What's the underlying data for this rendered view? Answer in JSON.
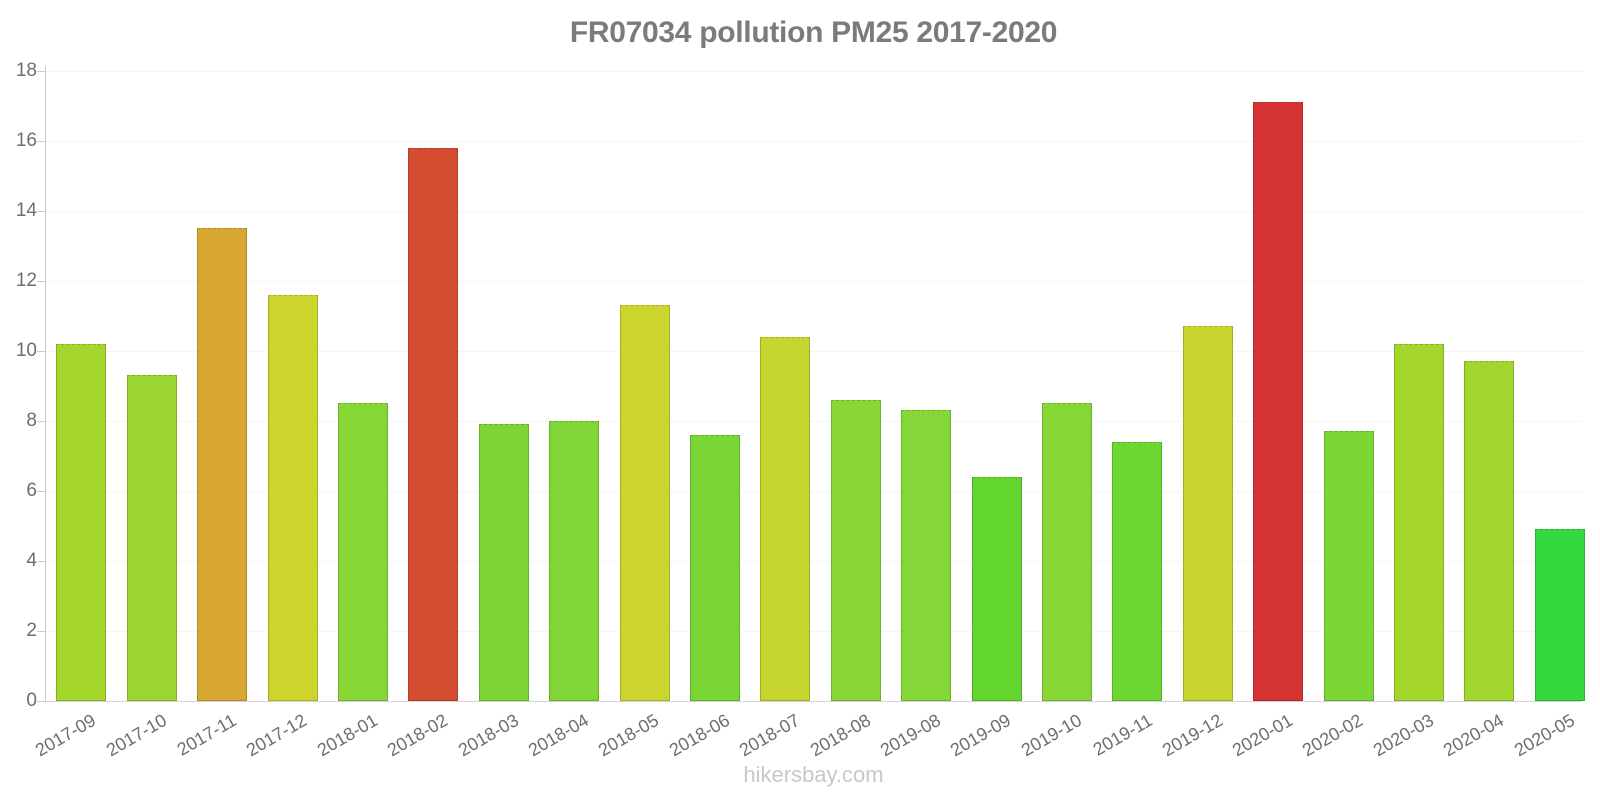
{
  "chart_data": {
    "type": "bar",
    "title": "FR07034 pollution PM25 2017-2020",
    "xlabel": "",
    "ylabel": "",
    "categories": [
      "2017-09",
      "2017-10",
      "2017-11",
      "2017-12",
      "2018-01",
      "2018-02",
      "2018-03",
      "2018-04",
      "2018-05",
      "2018-06",
      "2018-07",
      "2018-08",
      "2019-08",
      "2019-09",
      "2019-10",
      "2019-11",
      "2019-12",
      "2020-01",
      "2020-02",
      "2020-03",
      "2020-04",
      "2020-05"
    ],
    "values": [
      10.2,
      9.3,
      13.5,
      11.6,
      8.5,
      15.8,
      7.9,
      8.0,
      11.3,
      7.6,
      10.4,
      8.6,
      8.3,
      6.4,
      8.5,
      7.4,
      10.7,
      17.1,
      7.7,
      10.2,
      9.7,
      4.9
    ],
    "bar_colors": [
      "#a4d62c",
      "#9bd530",
      "#d9a832",
      "#cdd52c",
      "#86d735",
      "#d54d30",
      "#7ed636",
      "#80d636",
      "#cbd52e",
      "#79d634",
      "#c6d52f",
      "#88d736",
      "#84d736",
      "#62d62e",
      "#86d735",
      "#6cd730",
      "#c8d52e",
      "#d63434",
      "#7cd634",
      "#a4d62c",
      "#a0d62e",
      "#35d83e"
    ],
    "ylim": [
      0,
      18
    ],
    "yticks": [
      0,
      2,
      4,
      6,
      8,
      10,
      12,
      14,
      16,
      18
    ],
    "x_label_rotation_deg": -30,
    "grid": "faint horizontal lines",
    "legend": "none"
  },
  "watermark": "hikersbay.com",
  "colors": {
    "title_text": "#7b7b7b",
    "tick_text": "#6e6e6e",
    "axis_line": "#cccccc",
    "baseline": "#d4d4d4",
    "grid_line": "#f5f5f5",
    "watermark_text": "#c8c8c8"
  }
}
